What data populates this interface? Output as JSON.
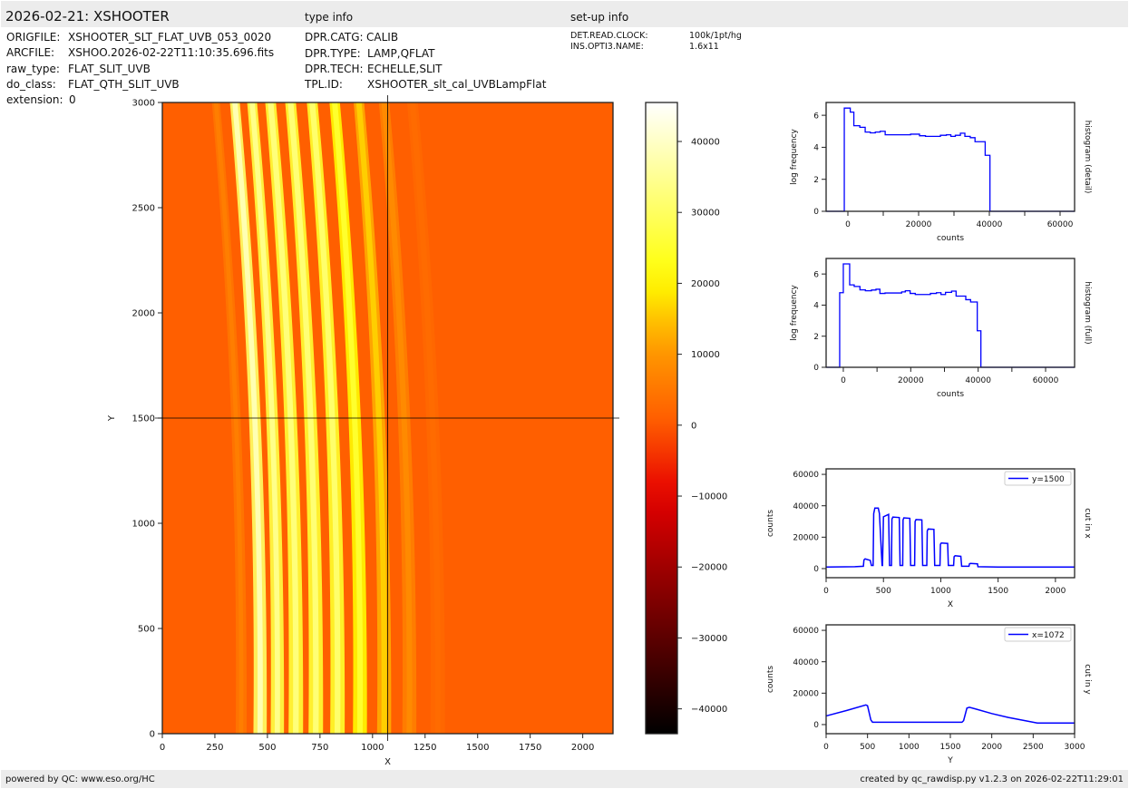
{
  "header": {
    "title": "2026-02-21: XSHOOTER",
    "type_info_title": "type info",
    "setup_info_title": "set-up info"
  },
  "file_info": [
    {
      "label": "ORIGFILE:",
      "value": "XSHOOTER_SLT_FLAT_UVB_053_0020"
    },
    {
      "label": "ARCFILE:",
      "value": "XSHOO.2026-02-22T11:10:35.696.fits"
    },
    {
      "label": "raw_type:",
      "value": "FLAT_SLIT_UVB"
    },
    {
      "label": "do_class:",
      "value": "FLAT_QTH_SLIT_UVB"
    },
    {
      "label": "extension:",
      "value": "0"
    }
  ],
  "type_info": [
    {
      "label": "DPR.CATG:",
      "value": "CALIB"
    },
    {
      "label": "DPR.TYPE:",
      "value": "LAMP,QFLAT"
    },
    {
      "label": "DPR.TECH:",
      "value": "ECHELLE,SLIT"
    },
    {
      "label": "TPL.ID:",
      "value": "XSHOOTER_slt_cal_UVBLampFlat"
    }
  ],
  "setup_info": [
    {
      "label": "DET.READ.CLOCK:",
      "value": "100k/1pt/hg"
    },
    {
      "label": "INS.OPTI3.NAME:",
      "value": "1.6x11"
    }
  ],
  "footer": {
    "left": "powered by QC: www.eso.org/HC",
    "right": "created by qc_rawdisp.py v1.2.3 on 2026-02-22T11:29:01"
  },
  "colors": {
    "line": "#0000ff",
    "header_bg": "#ececec",
    "crosshair": "#000000"
  },
  "chart_data": [
    {
      "type": "heatmap",
      "name": "raw-image",
      "xlabel": "X",
      "ylabel": "Y",
      "xlim": [
        0,
        2144
      ],
      "ylim": [
        0,
        3000
      ],
      "xticks": [
        0,
        250,
        500,
        750,
        1000,
        1250,
        1500,
        1750,
        2000
      ],
      "yticks": [
        0,
        500,
        1000,
        1500,
        2000,
        2500,
        3000
      ],
      "crosshair": {
        "x": 1072,
        "y": 1500
      },
      "colormap": "hot",
      "background_counts": 1000,
      "bands": [
        {
          "x": 350,
          "width": 45,
          "counts": 6000
        },
        {
          "x": 440,
          "width": 55,
          "counts": 38000
        },
        {
          "x": 522,
          "width": 55,
          "counts": 34000
        },
        {
          "x": 610,
          "width": 60,
          "counts": 32500
        },
        {
          "x": 705,
          "width": 60,
          "counts": 32000
        },
        {
          "x": 808,
          "width": 60,
          "counts": 31000
        },
        {
          "x": 915,
          "width": 58,
          "counts": 25000
        },
        {
          "x": 1030,
          "width": 58,
          "counts": 16000
        },
        {
          "x": 1150,
          "width": 58,
          "counts": 8000
        },
        {
          "x": 1285,
          "width": 60,
          "counts": 3000
        }
      ],
      "colorbar": {
        "vmin": -43500,
        "vmax": 45500,
        "ticks": [
          -40000,
          -30000,
          -20000,
          -10000,
          0,
          10000,
          20000,
          30000,
          40000
        ]
      }
    },
    {
      "type": "bar",
      "name": "histogram-detail",
      "xlabel": "counts",
      "ylabel": "log frequency",
      "side_label": "histogram (detail)",
      "xlim": [
        -6150,
        64100
      ],
      "ylim": [
        0,
        6.8
      ],
      "xticks": [
        0,
        20000,
        40000,
        60000
      ],
      "xminor": [
        10000,
        30000,
        50000
      ],
      "yticks": [
        0,
        2,
        4,
        6
      ],
      "step_edges": [
        -1013,
        675,
        1688,
        3376,
        4895,
        6329,
        7764,
        9114,
        10549,
        17722,
        20253,
        21941,
        26160,
        27848,
        29114,
        30380,
        31814,
        33080,
        34599,
        35949,
        38819,
        40169
      ],
      "step_values": [
        6.45,
        6.2,
        5.35,
        5.25,
        4.95,
        4.9,
        4.95,
        5.0,
        4.78,
        4.82,
        4.72,
        4.68,
        4.75,
        4.78,
        4.68,
        4.75,
        4.88,
        4.68,
        4.6,
        4.35,
        3.5
      ]
    },
    {
      "type": "bar",
      "name": "histogram-full",
      "xlabel": "counts",
      "ylabel": "log frequency",
      "side_label": "histogram (full)",
      "xlim": [
        -5100,
        68600
      ],
      "ylim": [
        0,
        7.0
      ],
      "xticks": [
        0,
        20000,
        40000,
        60000
      ],
      "xminor": [
        10000,
        30000,
        50000
      ],
      "yticks": [
        0,
        2,
        4,
        6
      ],
      "step_edges": [
        -1076,
        0,
        1883,
        3229,
        4933,
        6547,
        8341,
        9686,
        10852,
        12377,
        17309,
        18386,
        19821,
        21345,
        25830,
        27623,
        28969,
        30314,
        32108,
        33453,
        36323,
        37758,
        39731,
        40807
      ],
      "step_values": [
        4.8,
        6.65,
        5.3,
        5.2,
        4.98,
        4.92,
        4.97,
        5.02,
        4.75,
        4.78,
        4.85,
        4.92,
        4.75,
        4.68,
        4.75,
        4.8,
        4.68,
        4.82,
        4.9,
        4.58,
        4.35,
        4.2,
        2.35
      ]
    },
    {
      "type": "line",
      "name": "cut-in-x",
      "xlabel": "X",
      "ylabel": "counts",
      "side_label": "cut in x",
      "xlim": [
        0,
        2167
      ],
      "ylim": [
        -5800,
        63500
      ],
      "xticks": [
        0,
        500,
        1000,
        1500,
        2000
      ],
      "yticks": [
        0,
        20000,
        40000,
        60000
      ],
      "legend": "y=1500",
      "x": [
        0,
        250,
        325,
        330,
        340,
        385,
        395,
        410,
        415,
        425,
        455,
        465,
        488,
        492,
        500,
        545,
        553,
        570,
        574,
        582,
        638,
        645,
        668,
        671,
        678,
        730,
        737,
        772,
        776,
        784,
        835,
        842,
        878,
        882,
        890,
        940,
        947,
        993,
        997,
        1005,
        1060,
        1066,
        1112,
        1116,
        1125,
        1175,
        1182,
        1246,
        1250,
        1258,
        1320,
        1324,
        1500,
        2167
      ],
      "y": [
        1000,
        1200,
        1500,
        5500,
        6200,
        5200,
        2000,
        2000,
        35000,
        38500,
        38500,
        35000,
        2000,
        2000,
        33000,
        34500,
        2000,
        2000,
        31500,
        32800,
        32500,
        2000,
        2000,
        31000,
        32300,
        32000,
        2000,
        2000,
        30000,
        31200,
        31000,
        2000,
        2000,
        24000,
        25200,
        25000,
        2000,
        2000,
        15500,
        16300,
        16000,
        2000,
        2000,
        7500,
        8200,
        7800,
        1500,
        1500,
        3000,
        3300,
        3000,
        1200,
        1000,
        1000
      ]
    },
    {
      "type": "line",
      "name": "cut-in-y",
      "xlabel": "Y",
      "ylabel": "counts",
      "side_label": "cut in y",
      "xlim": [
        0,
        3000
      ],
      "ylim": [
        -5800,
        63500
      ],
      "xticks": [
        0,
        500,
        1000,
        1500,
        2000,
        2500,
        3000
      ],
      "yticks": [
        0,
        20000,
        40000,
        60000
      ],
      "legend": "x=1072",
      "x": [
        0,
        250,
        480,
        500,
        540,
        560,
        1000,
        1640,
        1660,
        1700,
        1730,
        1800,
        2000,
        2200,
        2400,
        2550,
        3000
      ],
      "y": [
        5500,
        9000,
        12500,
        12000,
        3000,
        1500,
        1500,
        1500,
        2500,
        10500,
        11000,
        10000,
        7000,
        4500,
        2500,
        1000,
        1000
      ]
    }
  ]
}
